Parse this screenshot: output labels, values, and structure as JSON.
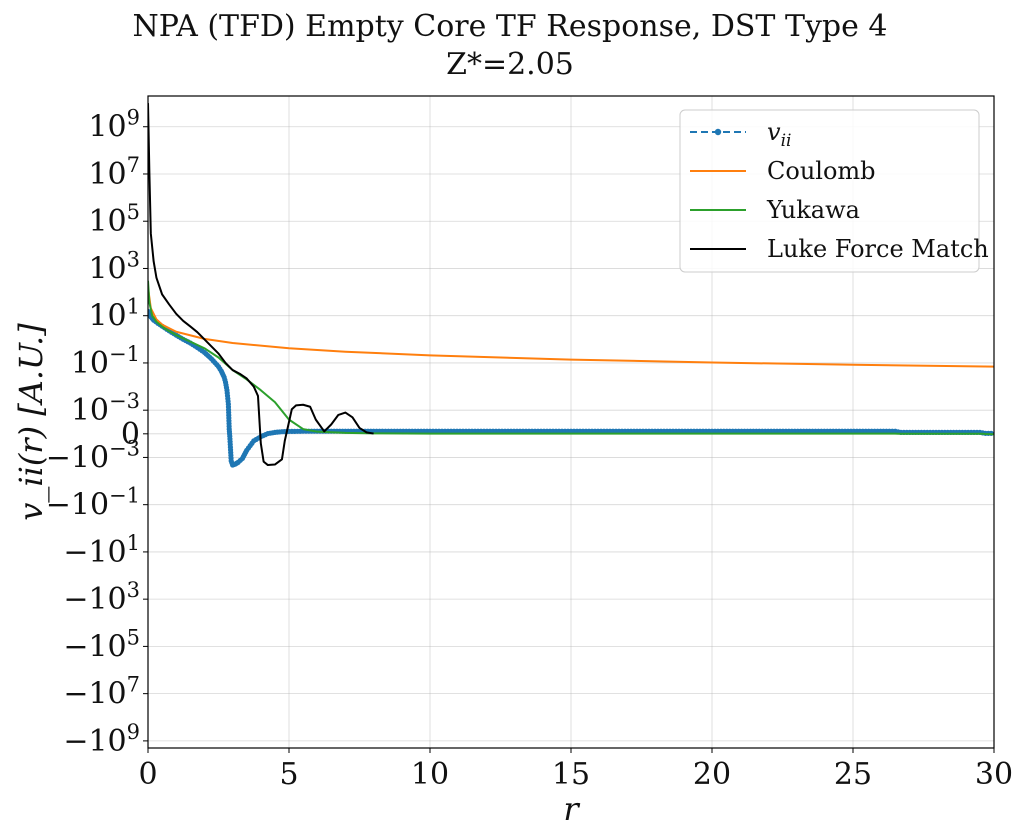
{
  "chart_data": {
    "type": "line",
    "title": "NPA (TFD) Empty Core TF Response, DST Type 4",
    "subtitle": "Z*=2.05",
    "xlabel": "r",
    "ylabel": "v_ii(r) [A.U.]",
    "xlim": [
      0,
      30
    ],
    "ylim": [
      -2000000000,
      20000000000
    ],
    "yscale": "symlog",
    "linthresh": 0.001,
    "grid": true,
    "legend_position": "top-right",
    "x_ticks": [
      0,
      5,
      10,
      15,
      20,
      25,
      30
    ],
    "x_tick_labels": [
      "0",
      "5",
      "10",
      "15",
      "20",
      "25",
      "30"
    ],
    "y_ticks": [
      1000000000,
      10000000,
      100000,
      1000,
      10,
      0.1,
      0.001,
      0,
      -0.001,
      -0.1,
      -10,
      -1000,
      -100000,
      -10000000,
      -1000000000
    ],
    "y_tick_labels": [
      {
        "base": "10",
        "exp": "9"
      },
      {
        "base": "10",
        "exp": "7"
      },
      {
        "base": "10",
        "exp": "5"
      },
      {
        "base": "10",
        "exp": "3"
      },
      {
        "base": "10",
        "exp": "1"
      },
      {
        "base": "10",
        "exp": "−1"
      },
      {
        "base": "10",
        "exp": "−3"
      },
      {
        "base": "0",
        "exp": ""
      },
      {
        "base": "−10",
        "exp": "−3"
      },
      {
        "base": "−10",
        "exp": "−1"
      },
      {
        "base": "−10",
        "exp": "1"
      },
      {
        "base": "−10",
        "exp": "3"
      },
      {
        "base": "−10",
        "exp": "5"
      },
      {
        "base": "−10",
        "exp": "7"
      },
      {
        "base": "−10",
        "exp": "9"
      }
    ],
    "series": [
      {
        "name": "v_ii",
        "color": "#1f77b4",
        "style": "dashed-markers",
        "x": [
          0.02,
          0.1,
          0.2,
          0.35,
          0.5,
          0.75,
          1.0,
          1.25,
          1.5,
          1.75,
          2.0,
          2.25,
          2.5,
          2.6,
          2.7,
          2.75,
          2.8,
          2.85,
          2.88,
          2.9,
          2.95,
          3.0,
          3.1,
          3.2,
          3.35,
          3.5,
          3.75,
          4.0,
          4.25,
          4.5,
          4.75,
          5.0,
          5.5,
          6.0,
          7.0,
          8.0,
          10.0,
          15.0,
          20.0,
          26.5,
          26.7,
          29.5,
          29.7,
          30.0
        ],
        "y": [
          15,
          9,
          6.5,
          4.8,
          3.6,
          2.3,
          1.5,
          1.0,
          0.7,
          0.45,
          0.28,
          0.15,
          0.07,
          0.045,
          0.025,
          0.015,
          0.007,
          0.0018,
          0.0002,
          -0.0001,
          -0.0014,
          -0.0021,
          -0.0019,
          -0.0016,
          -0.0011,
          -0.0007,
          -0.0003,
          -0.00012,
          1e-05,
          6e-05,
          9e-05,
          0.0001,
          0.00011,
          0.00011,
          0.00011,
          0.00011,
          0.00011,
          0.00011,
          0.00011,
          0.00011,
          6e-05,
          6e-05,
          2e-05,
          2e-05
        ]
      },
      {
        "name": "Coulomb",
        "color": "#ff7f0e",
        "style": "solid",
        "x": [
          0.02,
          0.1,
          0.3,
          0.5,
          1,
          2,
          3,
          5,
          7,
          10,
          15,
          20,
          25,
          30
        ],
        "y": [
          104.6,
          20.9,
          6.97,
          4.18,
          2.09,
          1.046,
          0.697,
          0.418,
          0.299,
          0.209,
          0.139,
          0.1046,
          0.0837,
          0.0697
        ]
      },
      {
        "name": "Yukawa",
        "color": "#2ca02c",
        "style": "solid",
        "x": [
          0.0,
          0.05,
          0.15,
          0.3,
          0.6,
          1.0,
          1.5,
          2.0,
          2.5,
          3.0,
          3.5,
          4.0,
          4.5,
          5.0,
          5.5,
          6.0,
          7.0,
          8.0,
          10.0,
          15.0,
          20.0,
          26.5,
          26.6,
          29.6,
          29.7,
          30.0
        ],
        "y": [
          300,
          35,
          10,
          5.5,
          2.8,
          1.5,
          0.8,
          0.42,
          0.17,
          0.05,
          0.02,
          0.007,
          0.0022,
          0.0006,
          0.0002,
          9e-05,
          4e-05,
          2e-05,
          1e-05,
          1e-05,
          1e-05,
          1e-05,
          5e-06,
          5e-06,
          -1e-05,
          -2e-05
        ]
      },
      {
        "name": "Luke Force Match",
        "color": "#000000",
        "style": "solid",
        "x": [
          0.0,
          0.05,
          0.1,
          0.2,
          0.3,
          0.5,
          0.75,
          1.0,
          1.25,
          1.5,
          1.75,
          2.0,
          2.25,
          2.5,
          2.75,
          3.0,
          3.25,
          3.5,
          3.75,
          3.9,
          4.0,
          4.1,
          4.25,
          4.5,
          4.75,
          4.85,
          5.0,
          5.1,
          5.25,
          5.5,
          5.75,
          5.95,
          6.25,
          6.5,
          6.75,
          7.0,
          7.25,
          7.5,
          7.75,
          8.0
        ],
        "y": [
          10000000000,
          10000000,
          30000,
          2000,
          400,
          80,
          30,
          12,
          6,
          3.5,
          2.0,
          1.0,
          0.5,
          0.25,
          0.1,
          0.05,
          0.035,
          0.022,
          0.01,
          0.004,
          -0.0004,
          -0.0015,
          -0.0021,
          -0.002,
          -0.0012,
          -0.0003,
          0.0005,
          0.0011,
          0.0016,
          0.0017,
          0.0014,
          0.0006,
          0.0001,
          0.0004,
          0.0008,
          0.0009,
          0.0007,
          0.00025,
          6e-05,
          1e-05
        ]
      }
    ]
  }
}
